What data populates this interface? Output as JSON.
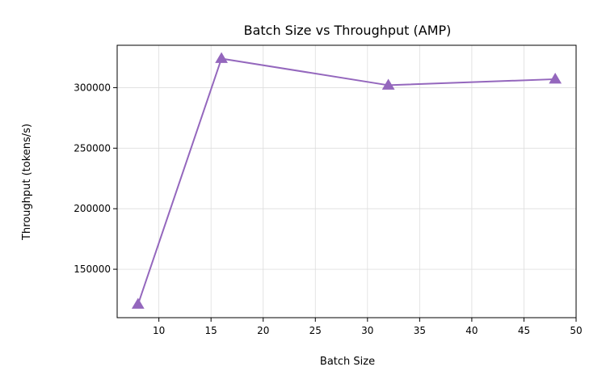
{
  "chart_data": {
    "type": "line",
    "title": "Batch Size vs Throughput (AMP)",
    "xlabel": "Batch Size",
    "ylabel": "Throughput (tokens/s)",
    "xlim": [
      6,
      50
    ],
    "ylim": [
      110000,
      335000
    ],
    "xticks": [
      10,
      15,
      20,
      25,
      30,
      35,
      40,
      45,
      50
    ],
    "yticks": [
      150000,
      200000,
      250000,
      300000
    ],
    "grid": true,
    "marker": "triangle",
    "color": "#9467bd",
    "series": [
      {
        "x": [
          8,
          16,
          32,
          48
        ],
        "values": [
          121000,
          324000,
          302000,
          307000
        ]
      }
    ]
  }
}
